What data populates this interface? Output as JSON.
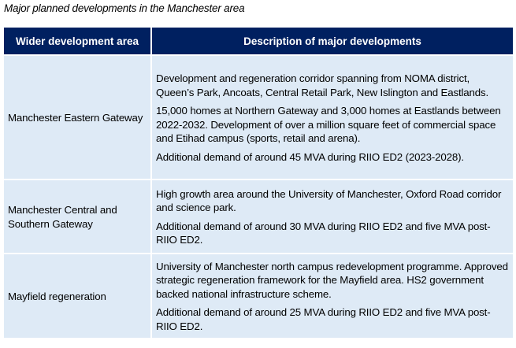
{
  "caption": "Major planned developments in the Manchester area",
  "table": {
    "headers": [
      "Wider development area",
      "Description of major developments"
    ],
    "rows": [
      {
        "area": "Manchester Eastern Gateway",
        "paragraphs": [
          "Development and regeneration corridor spanning from NOMA district, Queen’s Park, Ancoats, Central Retail Park, New Islington and Eastlands.",
          "15,000 homes at Northern Gateway and 3,000 homes at Eastlands between 2022-2032. Development of over a million square feet of commercial space and Etihad campus (sports, retail and arena).",
          "Additional demand of around 45 MVA during RIIO ED2 (2023-2028)."
        ]
      },
      {
        "area": "Manchester Central and Southern Gateway",
        "paragraphs": [
          "High growth area around the University of Manchester, Oxford Road corridor and science park.",
          "Additional demand of around 30 MVA during RIIO ED2 and five MVA post-RIIO ED2."
        ]
      },
      {
        "area": "Mayfield regeneration",
        "paragraphs": [
          "University of Manchester north campus redevelopment programme. Approved strategic regeneration framework for the Mayfield area. HS2 government backed national infrastructure scheme.",
          "Additional demand of around 25 MVA during RIIO ED2 and five MVA post-RIIO ED2."
        ]
      }
    ]
  },
  "colors": {
    "header_bg": "#002060",
    "cell_bg": "#deeaf6"
  }
}
